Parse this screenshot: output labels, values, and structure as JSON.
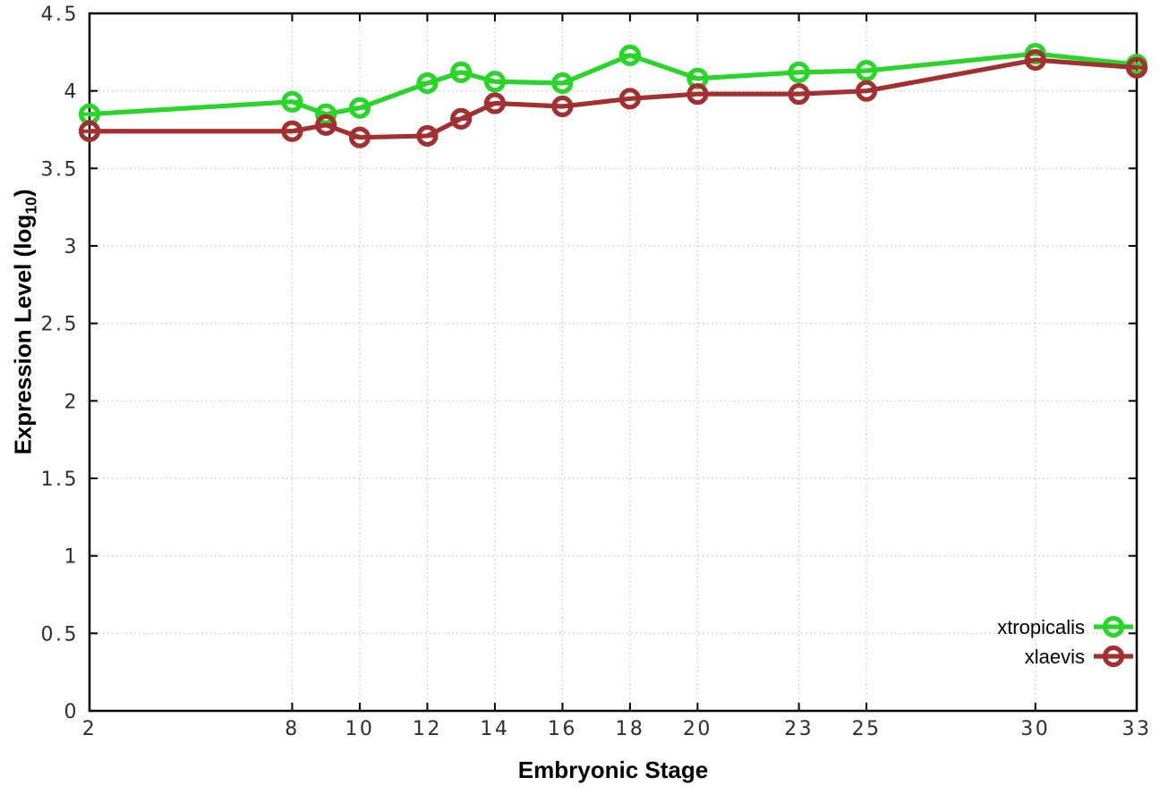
{
  "chart_data": {
    "type": "line",
    "title": "",
    "xlabel": "Embryonic Stage",
    "ylabel": "Expression Level (log10)",
    "ylabel_parts": {
      "main": "Expression Level (log",
      "sub": "10",
      "suffix": ")"
    },
    "xlim": [
      2,
      33
    ],
    "ylim": [
      0,
      4.5
    ],
    "x_ticks": [
      2,
      8,
      10,
      12,
      14,
      16,
      18,
      20,
      23,
      25,
      30,
      33
    ],
    "y_ticks": [
      0,
      0.5,
      1,
      1.5,
      2,
      2.5,
      3,
      3.5,
      4,
      4.5
    ],
    "grid": true,
    "legend_position": "inside-bottom-right",
    "marker": "open-circle-with-errorbar-cap",
    "x": [
      2,
      8,
      9,
      10,
      12,
      13,
      14,
      16,
      18,
      20,
      23,
      25,
      30,
      33
    ],
    "series": [
      {
        "name": "xtropicalis",
        "color": "#2ad52a",
        "values": [
          3.85,
          3.93,
          3.85,
          3.89,
          4.05,
          4.12,
          4.06,
          4.05,
          4.23,
          4.08,
          4.12,
          4.13,
          4.24,
          4.17
        ]
      },
      {
        "name": "xlaevis",
        "color": "#a33030",
        "values": [
          3.74,
          3.74,
          3.78,
          3.7,
          3.71,
          3.82,
          3.92,
          3.9,
          3.95,
          3.98,
          3.98,
          4.0,
          4.2,
          4.15
        ]
      }
    ]
  },
  "colors": {
    "background": "#ffffff",
    "grid": "#c4c4c4",
    "axis": "#000000",
    "tick_label": "#2f2f2f"
  }
}
